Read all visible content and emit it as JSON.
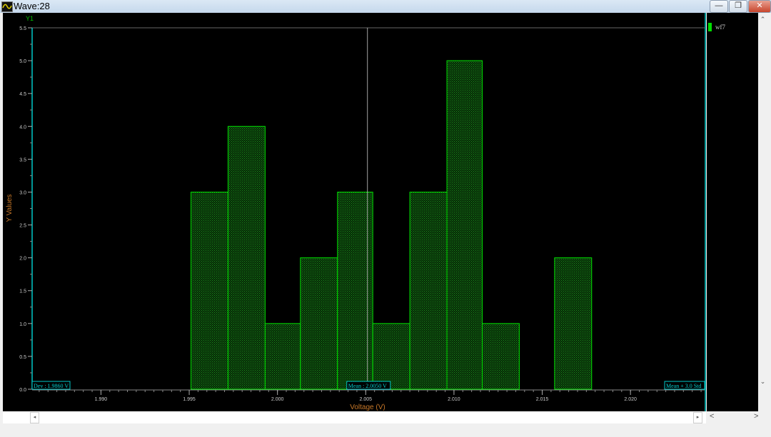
{
  "window": {
    "title": "Wave:28",
    "minimize": "—",
    "restore": "❐",
    "close": "✕"
  },
  "legend": {
    "entries": [
      {
        "name": "wf7",
        "color": "#00ff00"
      }
    ]
  },
  "chart_data": {
    "type": "bar",
    "title": "",
    "xlabel": "Voltage (V)",
    "ylabel": "Y Values",
    "y_axis_name": "Y1",
    "xlim": [
      1.9861,
      2.0242
    ],
    "ylim": [
      0,
      5.5
    ],
    "x_ticks": [
      "1.990",
      "1.995",
      "2.000",
      "2.005",
      "2.010",
      "2.015",
      "2.020"
    ],
    "x_tick_values": [
      1.99,
      1.995,
      2.0,
      2.005,
      2.01,
      2.015,
      2.02
    ],
    "y_ticks": [
      "0.0",
      "0.5",
      "1.0",
      "1.5",
      "2.0",
      "2.5",
      "3.0",
      "3.5",
      "4.0",
      "4.5",
      "5.0",
      "5.5"
    ],
    "series": [
      {
        "name": "wf7",
        "bin_edges": [
          1.9951,
          1.9972,
          1.9993,
          2.0013,
          2.0034,
          2.0054,
          2.0075,
          2.0096,
          2.0116,
          2.0137,
          2.0157,
          2.0178
        ],
        "values": [
          3,
          4,
          1,
          2,
          3,
          1,
          3,
          5,
          1,
          0,
          2
        ]
      }
    ],
    "mean_line": 2.0051,
    "markers": {
      "left": "Dev : 1.9860 V",
      "mean": "Mean : 2.0050 V",
      "right": "Mean + 3.0 Std"
    },
    "colors": {
      "bar": "#00e000",
      "bar_fill": "#0a5a0a",
      "axis": "#00c8c8",
      "label": "#c87828",
      "y1": "#00c000"
    },
    "grid": false
  }
}
